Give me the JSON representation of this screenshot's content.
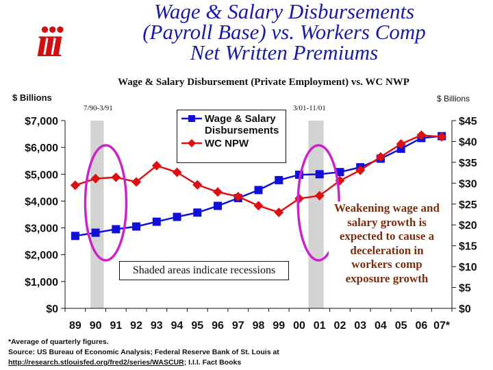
{
  "header": {
    "logo_text": "iii",
    "title_lines": [
      "Wage & Salary Disbursements",
      "(Payroll Base) vs. Workers Comp",
      "Net Written Premiums"
    ]
  },
  "colors": {
    "title": "#1a1aa8",
    "wage_series": "#1010d8",
    "npw_series": "#dd1111",
    "recession_shade": "#d3d3d3",
    "highlight_ellipse": "#cc22cc",
    "logo": "#d01010",
    "callout_text": "#7a2e0e"
  },
  "chart_data": {
    "type": "line",
    "title": "Wage & Salary Disbursement (Private Employment) vs. WC NWP",
    "ylabel_left": "$ Billions",
    "ylabel_right": "$ Billions",
    "categories": [
      "89",
      "90",
      "91",
      "92",
      "93",
      "94",
      "95",
      "96",
      "97",
      "98",
      "99",
      "00",
      "01",
      "02",
      "03",
      "04",
      "05",
      "06",
      "07*"
    ],
    "y_left": {
      "ylim": [
        0,
        7000
      ],
      "ticks": [
        "$0",
        "$1,000",
        "$2,000",
        "$3,000",
        "$4,000",
        "$5,000",
        "$6,000",
        "$7,000"
      ]
    },
    "y_right": {
      "ylim": [
        0,
        45
      ],
      "ticks": [
        "$0",
        "$5",
        "$10",
        "$15",
        "$20",
        "$25",
        "$30",
        "$35",
        "$40",
        "$45"
      ]
    },
    "series": [
      {
        "name": "Wage & Salary Disbursements",
        "axis": "left",
        "marker": "square",
        "values": [
          2700,
          2820,
          2950,
          3050,
          3230,
          3410,
          3570,
          3820,
          4110,
          4410,
          4780,
          4980,
          5000,
          5080,
          5260,
          5580,
          5950,
          6350,
          6420
        ]
      },
      {
        "name": "WC NPW",
        "axis": "right",
        "marker": "diamond",
        "values": [
          29.5,
          31.1,
          31.4,
          30.3,
          34.2,
          32.6,
          29.6,
          27.9,
          26.8,
          24.6,
          23.0,
          26.3,
          27.0,
          30.6,
          33.1,
          36.3,
          39.4,
          41.5,
          41.1
        ]
      }
    ],
    "recessions": [
      {
        "label": "7/90-3/91",
        "start": 0.75,
        "end": 1.4
      },
      {
        "label": "3/01-11/01",
        "start": 11.45,
        "end": 12.2
      }
    ],
    "highlights": [
      {
        "cx": 1.5,
        "cy_right": 25.3
      },
      {
        "cx": 11.95,
        "cy_right": 25.3
      }
    ],
    "grid": false,
    "legend": "top-center"
  },
  "annotations": {
    "shaded_note": "Shaded areas indicate recessions",
    "callout": "Weakening wage and salary growth is expected to cause a deceleration in workers comp exposure growth"
  },
  "footnote": {
    "line1": "*Average of quarterly figures.",
    "line2": "Source: US Bureau of Economic Analysis; Federal Reserve Bank of St. Louis at",
    "link": "http://research.stlouisfed.org/fred2/series/WASCUR",
    "line3_suffix": "; I.I.I. Fact Books"
  }
}
